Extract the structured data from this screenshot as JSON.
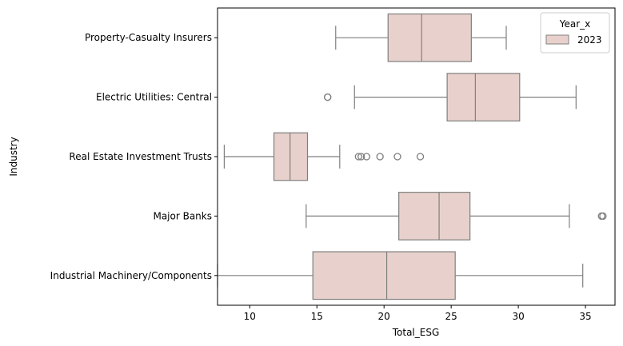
{
  "chart_data": {
    "type": "boxplot",
    "orientation": "horizontal",
    "xlabel": "Total_ESG",
    "ylabel": "Industry",
    "xlim": [
      7.6,
      37.2
    ],
    "xticks": [
      10,
      15,
      20,
      25,
      30,
      35
    ],
    "grid": false,
    "legend": {
      "title": "Year_x",
      "placement": "top-right",
      "entries": [
        "2023"
      ]
    },
    "colors": {
      "box_fill": "#e8d1cc",
      "line": "#7f7f7f",
      "axis": "#000000"
    },
    "categories": [
      "Property-Casualty Insurers",
      "Electric Utilities: Central",
      "Real Estate Investment Trusts",
      "Major Banks",
      "Industrial Machinery/Components"
    ],
    "series": [
      {
        "name": "2023",
        "boxes": [
          {
            "whislo": 16.4,
            "q1": 20.3,
            "med": 22.8,
            "q3": 26.5,
            "whishi": 29.1,
            "fliers": []
          },
          {
            "whislo": 17.8,
            "q1": 24.7,
            "med": 26.8,
            "q3": 30.1,
            "whishi": 34.3,
            "fliers": [
              15.8,
              15.8
            ]
          },
          {
            "whislo": 8.1,
            "q1": 11.8,
            "med": 13.0,
            "q3": 14.3,
            "whishi": 16.7,
            "fliers": [
              18.1,
              18.3,
              18.7,
              19.7,
              21.0,
              22.7
            ]
          },
          {
            "whislo": 14.2,
            "q1": 21.1,
            "med": 24.1,
            "q3": 26.4,
            "whishi": 33.8,
            "fliers": [
              36.2,
              36.3
            ]
          },
          {
            "whislo": 7.6,
            "q1": 14.7,
            "med": 20.2,
            "q3": 25.3,
            "whishi": 34.8,
            "fliers": []
          }
        ]
      }
    ]
  }
}
